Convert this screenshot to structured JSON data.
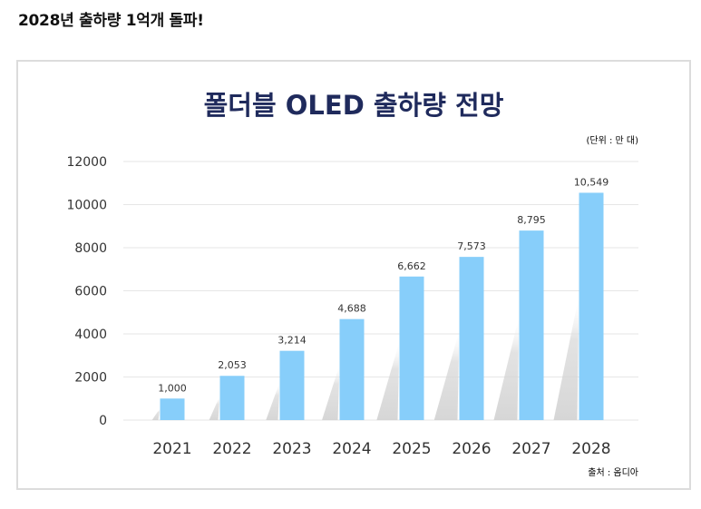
{
  "headline": "2028년 출하량 1억개 돌파!",
  "chart_data": {
    "type": "bar",
    "title": "폴더블 OLED 출하량 전망",
    "unit_note": "(단위 : 만 대)",
    "source": "출처 : 옴디아",
    "categories": [
      "2021",
      "2022",
      "2023",
      "2024",
      "2025",
      "2026",
      "2027",
      "2028"
    ],
    "values": [
      1000,
      2053,
      3214,
      4688,
      6662,
      7573,
      8795,
      10549
    ],
    "data_labels": [
      "1,000",
      "2,053",
      "3,214",
      "4,688",
      "6,662",
      "7,573",
      "8,795",
      "10,549"
    ],
    "y_ticks": [
      "0",
      "2000",
      "4000",
      "6000",
      "8000",
      "10000",
      "12000"
    ],
    "ylim": [
      0,
      12000
    ],
    "grid": true,
    "legend": "none",
    "colors": {
      "bar": "#87cefa",
      "title": "#1f2a5c",
      "axis_text": "#333333",
      "grid": "#e6e6e6",
      "shadow": "#d9d9d9"
    }
  }
}
